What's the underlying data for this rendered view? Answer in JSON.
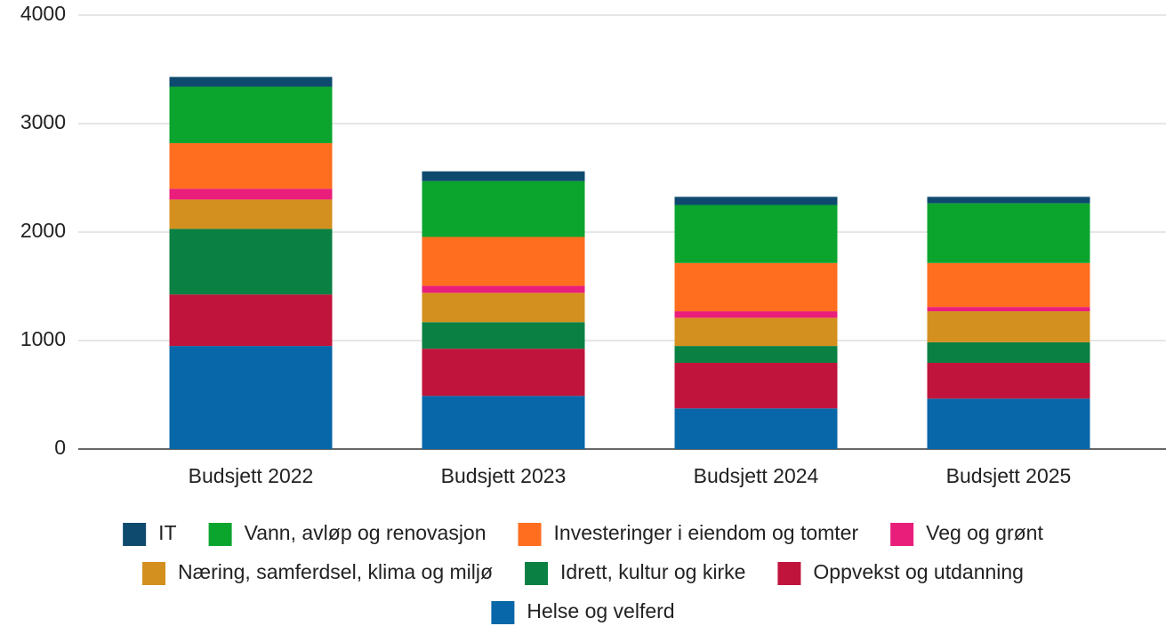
{
  "chart_data": {
    "type": "stacked_bar",
    "categories": [
      "Budsjett 2022",
      "Budsjett 2023",
      "Budsjett 2024",
      "Budsjett 2025"
    ],
    "series": [
      {
        "name": "IT",
        "color": "#0e4a6e",
        "values": [
          90,
          90,
          75,
          60
        ]
      },
      {
        "name": "Vann, avløp og renovasjon",
        "color": "#0ba52e",
        "values": [
          520,
          515,
          535,
          550
        ]
      },
      {
        "name": "Investeringer i eiendom og tomter",
        "color": "#ff6d1f",
        "values": [
          420,
          450,
          445,
          405
        ]
      },
      {
        "name": "Veg og grønt",
        "color": "#e91e7b",
        "values": [
          100,
          65,
          60,
          40
        ]
      },
      {
        "name": "Næring, samferdsel, klima og miljø",
        "color": "#d4901e",
        "values": [
          270,
          270,
          260,
          285
        ]
      },
      {
        "name": "Idrett, kultur og kirke",
        "color": "#0b8043",
        "values": [
          605,
          245,
          155,
          190
        ]
      },
      {
        "name": "Oppvekst og utdanning",
        "color": "#c0143c",
        "values": [
          475,
          435,
          420,
          330
        ]
      },
      {
        "name": "Helse og velferd",
        "color": "#0767a8",
        "values": [
          950,
          490,
          375,
          465
        ]
      }
    ],
    "ylim": [
      0,
      4000
    ],
    "yticks": [
      0,
      1000,
      2000,
      3000,
      4000
    ],
    "grid": true,
    "legend": "bottom"
  }
}
